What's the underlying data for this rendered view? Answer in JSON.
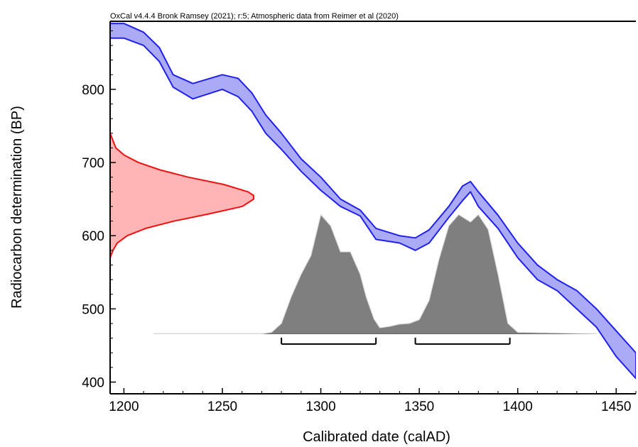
{
  "chart_data": {
    "type": "area",
    "title": "OxCal v4.4.4 Bronk Ramsey (2021); r:5; Atmospheric data from Reimer et al (2020)",
    "xlabel": "Calibrated date (calAD)",
    "ylabel": "Radiocarbon determination (BP)",
    "xlim": [
      1193,
      1460
    ],
    "ylim": [
      384,
      893
    ],
    "x_ticks": [
      1200,
      1250,
      1300,
      1350,
      1400,
      1450
    ],
    "y_ticks": [
      400,
      500,
      600,
      700,
      800
    ],
    "grid": false,
    "colors": {
      "calibration_fill": "#aaaaf5",
      "calibration_stroke": "#2020ee",
      "measurement_fill": "#ffb5b5",
      "measurement_stroke": "#ee1111",
      "posterior_fill": "#7f7f7f",
      "posterior_stroke": "#dddddd",
      "range_bar": "#000000"
    },
    "calibration_curve": {
      "x": [
        1193,
        1200,
        1210,
        1218,
        1225,
        1235,
        1250,
        1258,
        1265,
        1272,
        1280,
        1290,
        1300,
        1310,
        1320,
        1328,
        1340,
        1348,
        1355,
        1365,
        1372,
        1376,
        1380,
        1390,
        1400,
        1410,
        1420,
        1430,
        1440,
        1450,
        1460
      ],
      "upper": [
        890,
        890,
        878,
        857,
        820,
        808,
        820,
        815,
        795,
        765,
        740,
        705,
        680,
        650,
        635,
        610,
        600,
        597,
        608,
        640,
        668,
        674,
        660,
        628,
        590,
        560,
        540,
        525,
        500,
        470,
        440
      ],
      "lower": [
        870,
        870,
        860,
        838,
        803,
        787,
        800,
        790,
        770,
        740,
        718,
        688,
        662,
        640,
        627,
        595,
        590,
        580,
        590,
        625,
        648,
        660,
        640,
        610,
        570,
        540,
        525,
        500,
        475,
        435,
        405
      ]
    },
    "measurement_distribution": {
      "y": [
        570,
        580,
        590,
        600,
        610,
        620,
        630,
        640,
        650,
        655,
        660,
        670,
        680,
        690,
        700,
        710,
        720,
        730,
        740
      ],
      "density": [
        0,
        2,
        5,
        12,
        25,
        45,
        70,
        93,
        101,
        101,
        97,
        80,
        55,
        35,
        20,
        10,
        4,
        2,
        0
      ]
    },
    "posterior_distribution": {
      "baseline_y": 466,
      "x": [
        1215,
        1270,
        1275,
        1280,
        1285,
        1290,
        1295,
        1300,
        1305,
        1310,
        1315,
        1320,
        1323,
        1327,
        1330,
        1335,
        1340,
        1345,
        1350,
        1355,
        1360,
        1365,
        1370,
        1373,
        1376,
        1380,
        1385,
        1390,
        1395,
        1400,
        1440
      ],
      "density": [
        0,
        0,
        2,
        14,
        50,
        80,
        105,
        160,
        145,
        110,
        110,
        80,
        50,
        20,
        8,
        10,
        13,
        14,
        19,
        45,
        100,
        145,
        160,
        155,
        150,
        160,
        140,
        80,
        14,
        2,
        0
      ]
    },
    "range_bars": [
      {
        "from": 1280,
        "to": 1328,
        "y": 452
      },
      {
        "from": 1348,
        "to": 1396,
        "y": 452
      }
    ]
  }
}
